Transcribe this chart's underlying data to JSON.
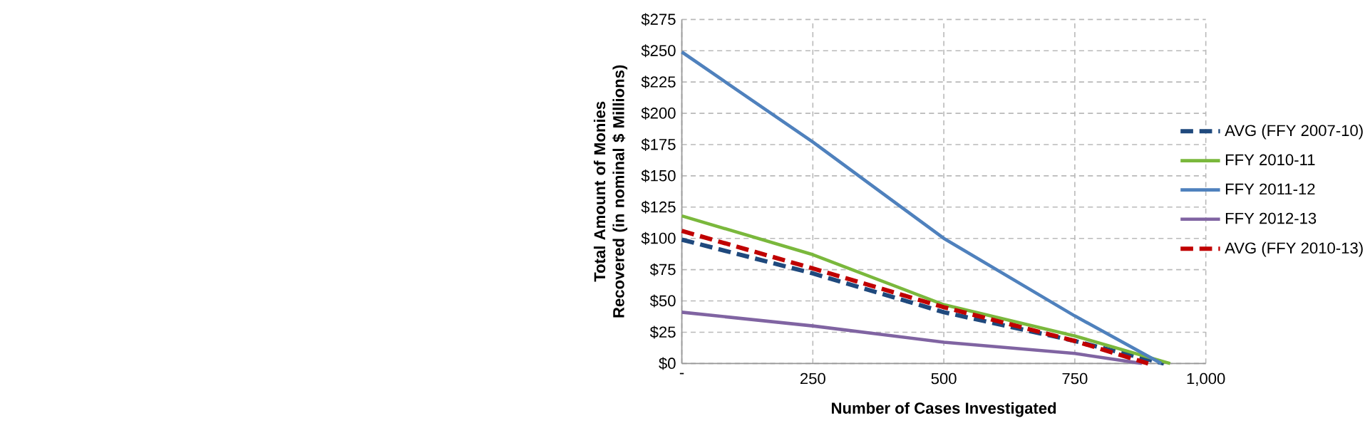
{
  "chart_data": {
    "type": "line",
    "xlabel": "Number of Cases Investigated",
    "ylabel": "Total Amount of Monies Recovered (in nominal $ Millions)",
    "xlim": [
      0,
      1000
    ],
    "ylim": [
      0,
      275
    ],
    "xticks": [
      {
        "value": 0,
        "label": "-"
      },
      250,
      500,
      750,
      {
        "value": 1000,
        "label": "1,000"
      }
    ],
    "yticks": [
      {
        "value": 0,
        "label": "$0"
      },
      {
        "value": 25,
        "label": "$25"
      },
      {
        "value": 50,
        "label": "$50"
      },
      {
        "value": 75,
        "label": "$75"
      },
      {
        "value": 100,
        "label": "$100"
      },
      {
        "value": 125,
        "label": "$125"
      },
      {
        "value": 150,
        "label": "$150"
      },
      {
        "value": 175,
        "label": "$175"
      },
      {
        "value": 200,
        "label": "$200"
      },
      {
        "value": 225,
        "label": "$225"
      },
      {
        "value": 250,
        "label": "$250"
      },
      {
        "value": 275,
        "label": "$275"
      }
    ],
    "grid": true,
    "legend": "right",
    "marker": "none",
    "series": [
      {
        "name": "AVG (FFY 2007-10)",
        "color": "#1f497d",
        "line_style": "dashed",
        "x": [
          0,
          250,
          500,
          750,
          920
        ],
        "values": [
          99,
          72,
          41,
          18,
          0
        ]
      },
      {
        "name": "FFY 2010-11",
        "color": "#7ab83c",
        "line_style": "solid",
        "x": [
          0,
          250,
          500,
          750,
          932
        ],
        "values": [
          118,
          87,
          47,
          22,
          0
        ]
      },
      {
        "name": "FFY 2011-12",
        "color": "#4f81bd",
        "line_style": "solid",
        "x": [
          0,
          250,
          500,
          750,
          915
        ],
        "values": [
          249,
          177,
          100,
          38,
          0
        ]
      },
      {
        "name": "FFY 2012-13",
        "color": "#8064a2",
        "line_style": "solid",
        "x": [
          0,
          250,
          500,
          750,
          878
        ],
        "values": [
          41,
          30,
          17,
          8,
          0
        ]
      },
      {
        "name": "AVG (FFY 2010-13)",
        "color": "#c00000",
        "line_style": "dashed",
        "x": [
          0,
          250,
          500,
          750,
          890
        ],
        "values": [
          106,
          76,
          45,
          18,
          0
        ]
      }
    ]
  }
}
